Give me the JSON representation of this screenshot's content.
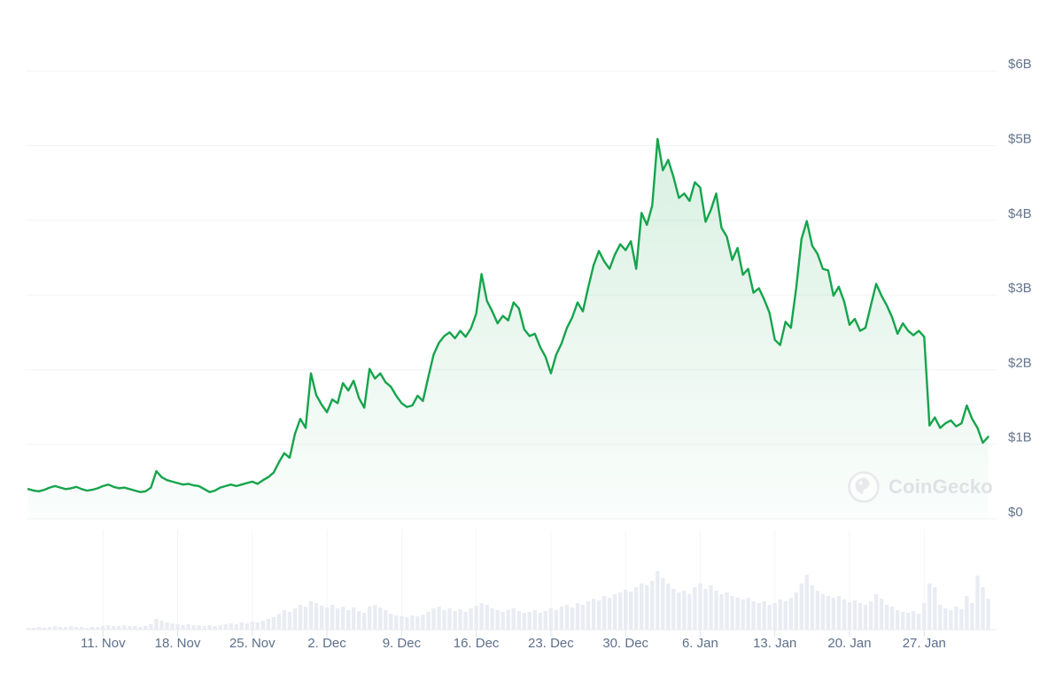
{
  "watermark": {
    "text": "CoinGecko"
  },
  "colors": {
    "line": "#16a44c",
    "area_top": "rgba(22,164,76,0.16)",
    "area_bottom": "rgba(22,164,76,0.02)",
    "grid": "#f1f3f5",
    "vol_grid": "#f4f5f8",
    "axis_text": "#64748b",
    "x_axis_text": "#5d6f8a",
    "volume_bar": "#eaecf3",
    "baseline": "#e9ebef",
    "tick": "#dfe3e9",
    "watermark_text": "#dfe1e4",
    "watermark_logo": "#e8e9eb"
  },
  "chart_data": {
    "type": "area",
    "title": "",
    "y_unit": "USD billions",
    "ylim": [
      0,
      6
    ],
    "grid": "horizontal",
    "y_tick_labels": [
      "$6B",
      "$5B",
      "$4B",
      "$3B",
      "$2B",
      "$1B",
      "$0"
    ],
    "y_tick_values": [
      6,
      5,
      4,
      3,
      2,
      1,
      0
    ],
    "x_tick_labels": [
      "11. Nov",
      "18. Nov",
      "25. Nov",
      "2. Dec",
      "9. Dec",
      "16. Dec",
      "23. Dec",
      "30. Dec",
      "6. Jan",
      "13. Jan",
      "20. Jan",
      "27. Jan"
    ],
    "sampling": "2 points per day, early November through early February",
    "series": [
      {
        "name": "market-cap",
        "unit": "$B",
        "values": [
          0.4,
          0.38,
          0.37,
          0.39,
          0.42,
          0.44,
          0.42,
          0.4,
          0.41,
          0.43,
          0.4,
          0.38,
          0.39,
          0.41,
          0.44,
          0.46,
          0.43,
          0.41,
          0.42,
          0.4,
          0.38,
          0.36,
          0.37,
          0.42,
          0.64,
          0.56,
          0.52,
          0.5,
          0.48,
          0.46,
          0.47,
          0.45,
          0.44,
          0.4,
          0.36,
          0.38,
          0.42,
          0.44,
          0.46,
          0.44,
          0.46,
          0.48,
          0.5,
          0.47,
          0.52,
          0.56,
          0.62,
          0.76,
          0.88,
          0.82,
          1.14,
          1.34,
          1.22,
          1.95,
          1.66,
          1.53,
          1.43,
          1.6,
          1.55,
          1.82,
          1.72,
          1.85,
          1.62,
          1.49,
          2.01,
          1.88,
          1.95,
          1.83,
          1.77,
          1.65,
          1.55,
          1.5,
          1.52,
          1.65,
          1.58,
          1.9,
          2.2,
          2.36,
          2.45,
          2.5,
          2.42,
          2.52,
          2.44,
          2.55,
          2.75,
          3.28,
          2.92,
          2.78,
          2.62,
          2.72,
          2.66,
          2.9,
          2.82,
          2.54,
          2.45,
          2.48,
          2.3,
          2.17,
          1.95,
          2.2,
          2.35,
          2.56,
          2.7,
          2.9,
          2.78,
          3.1,
          3.4,
          3.59,
          3.45,
          3.35,
          3.54,
          3.68,
          3.6,
          3.72,
          3.35,
          4.1,
          3.94,
          4.2,
          5.09,
          4.67,
          4.81,
          4.58,
          4.3,
          4.36,
          4.26,
          4.51,
          4.44,
          3.98,
          4.14,
          4.36,
          3.9,
          3.78,
          3.47,
          3.63,
          3.27,
          3.35,
          3.03,
          3.09,
          2.94,
          2.76,
          2.4,
          2.33,
          2.64,
          2.56,
          3.09,
          3.75,
          3.99,
          3.66,
          3.55,
          3.35,
          3.33,
          2.99,
          3.11,
          2.91,
          2.6,
          2.68,
          2.52,
          2.56,
          2.86,
          3.15,
          2.99,
          2.86,
          2.7,
          2.48,
          2.62,
          2.52,
          2.46,
          2.52,
          2.44,
          1.25,
          1.36,
          1.22,
          1.28,
          1.32,
          1.24,
          1.28,
          1.52,
          1.34,
          1.22,
          1.02,
          1.1
        ]
      }
    ],
    "volume_relative": {
      "name": "volume",
      "scale": "relative height, unlabeled axis",
      "values": [
        2,
        2,
        3,
        2,
        3,
        4,
        3,
        3,
        4,
        3,
        3,
        2,
        3,
        3,
        4,
        5,
        4,
        4,
        5,
        4,
        4,
        3,
        4,
        6,
        12,
        10,
        8,
        7,
        6,
        5,
        6,
        5,
        5,
        4,
        5,
        4,
        5,
        6,
        7,
        6,
        8,
        7,
        9,
        8,
        10,
        12,
        14,
        18,
        22,
        20,
        24,
        28,
        26,
        32,
        30,
        27,
        25,
        28,
        24,
        26,
        22,
        25,
        21,
        19,
        26,
        28,
        25,
        22,
        18,
        16,
        15,
        14,
        16,
        15,
        17,
        20,
        24,
        26,
        22,
        24,
        21,
        23,
        20,
        24,
        27,
        30,
        28,
        24,
        22,
        20,
        22,
        24,
        21,
        19,
        20,
        22,
        19,
        21,
        24,
        22,
        26,
        28,
        25,
        30,
        28,
        32,
        35,
        33,
        38,
        36,
        40,
        42,
        45,
        43,
        48,
        52,
        50,
        55,
        66,
        58,
        52,
        46,
        42,
        44,
        40,
        48,
        52,
        46,
        50,
        44,
        40,
        42,
        38,
        36,
        34,
        36,
        32,
        30,
        32,
        28,
        30,
        34,
        32,
        36,
        42,
        52,
        62,
        50,
        44,
        40,
        38,
        36,
        38,
        34,
        31,
        33,
        30,
        28,
        32,
        40,
        35,
        28,
        26,
        22,
        20,
        19,
        21,
        18,
        30,
        52,
        48,
        28,
        24,
        22,
        26,
        23,
        38,
        30,
        61,
        48,
        35
      ]
    }
  }
}
